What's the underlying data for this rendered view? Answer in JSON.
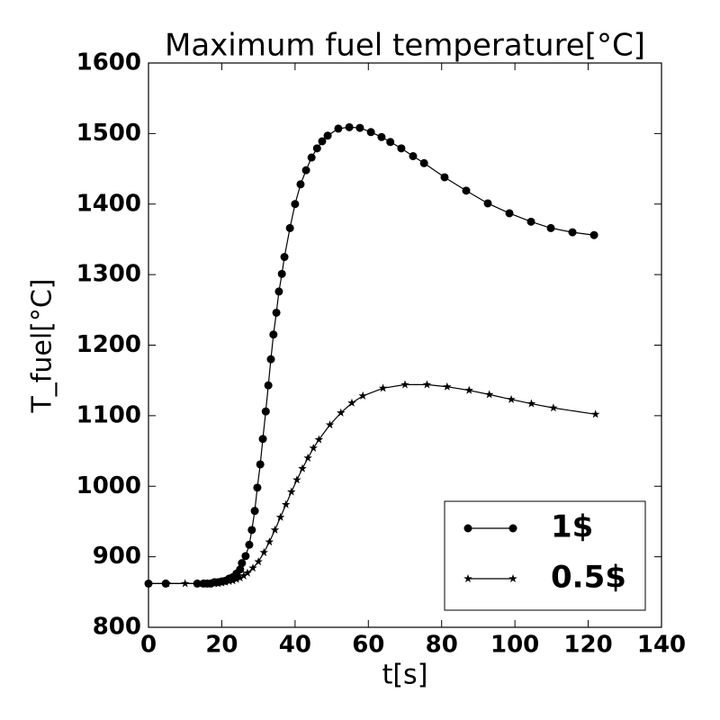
{
  "chart_data": {
    "type": "line",
    "title": "Maximum fuel temperature[°C]",
    "x_label": "t[s]",
    "y_label": "T_fuel[°C]",
    "xlim": [
      0,
      140
    ],
    "xticks": [
      0,
      20,
      40,
      60,
      80,
      100,
      120,
      140
    ],
    "ylim": [
      800,
      1600
    ],
    "yticks": [
      800,
      900,
      1000,
      1100,
      1200,
      1300,
      1400,
      1500,
      1600
    ],
    "legend": "lower right",
    "series": [
      {
        "name": "1$",
        "color": "#000000",
        "marker": "circle",
        "x": [
          0,
          4.7,
          13.3,
          15,
          16,
          17,
          18,
          19,
          20,
          21,
          22,
          23,
          24,
          25,
          25.5,
          26.5,
          27.5,
          28.2,
          29,
          29.7,
          30.5,
          31.2,
          32,
          32.7,
          33.4,
          34.1,
          34.9,
          35.6,
          36.4,
          37.1,
          38.6,
          40,
          41.5,
          43,
          44.5,
          46,
          47.4,
          48.9,
          51.8,
          54.8,
          57.7,
          60.7,
          63.6,
          66,
          69,
          72.2,
          75.2,
          80.8,
          86.7,
          92.6,
          98.5,
          104.4,
          109.8,
          115.7,
          121.6
        ],
        "values": [
          862,
          862,
          862,
          862,
          862,
          862,
          864,
          864,
          865,
          866,
          869,
          871,
          876,
          882,
          891,
          901,
          917,
          938,
          965,
          998,
          1031,
          1067,
          1106,
          1143,
          1180,
          1215,
          1246,
          1276,
          1301,
          1325,
          1366,
          1400,
          1428,
          1448,
          1466,
          1479,
          1489,
          1497,
          1507,
          1509,
          1508,
          1502,
          1495,
          1488,
          1479,
          1468,
          1458,
          1438,
          1419,
          1401,
          1387,
          1375,
          1366,
          1360,
          1356
        ]
      },
      {
        "name": "0.5$",
        "color": "#000000",
        "marker": "star",
        "x": [
          0,
          5,
          10,
          13.5,
          15,
          16,
          17,
          18,
          19,
          20,
          21,
          22,
          23,
          24,
          25,
          26,
          27,
          28.5,
          30,
          31.5,
          33,
          34.5,
          36,
          37.5,
          39,
          40.5,
          42,
          43.5,
          45,
          46.5,
          49.5,
          52.5,
          55.5,
          58.5,
          64,
          70,
          76,
          81.5,
          87.5,
          93,
          99,
          104.5,
          110.5,
          122
        ],
        "values": [
          862,
          862,
          862,
          862,
          862,
          862,
          862,
          862,
          862,
          863,
          864,
          865,
          866,
          868,
          870,
          873,
          877,
          884,
          893,
          906,
          921,
          938,
          956,
          974,
          992,
          1009,
          1025,
          1040,
          1054,
          1066,
          1087,
          1104,
          1118,
          1128,
          1139,
          1144,
          1144,
          1141,
          1136,
          1130,
          1123,
          1117,
          1111,
          1102
        ]
      }
    ]
  }
}
